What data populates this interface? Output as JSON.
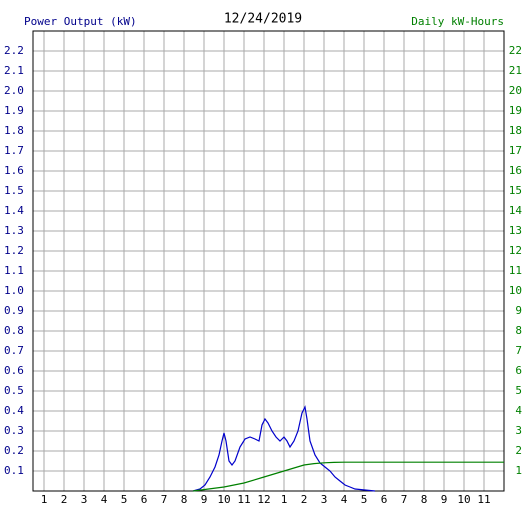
{
  "chart_data": {
    "type": "line",
    "title": "12/24/2019",
    "y_label": "Power Output (kW)",
    "y2_label": "Daily kW-Hours",
    "grid": true,
    "xlim": [
      0.45,
      24
    ],
    "xticks": [
      1,
      2,
      3,
      4,
      5,
      6,
      7,
      8,
      9,
      10,
      11,
      12,
      {
        "value": 13,
        "label": "1"
      },
      {
        "value": 14,
        "label": "2"
      },
      {
        "value": 15,
        "label": "3"
      },
      {
        "value": 16,
        "label": "4"
      },
      {
        "value": 17,
        "label": "5"
      },
      {
        "value": 18,
        "label": "6"
      },
      {
        "value": 19,
        "label": "7"
      },
      {
        "value": 20,
        "label": "8"
      },
      {
        "value": 21,
        "label": "9"
      },
      {
        "value": 22,
        "label": "10"
      },
      {
        "value": 23,
        "label": "11"
      }
    ],
    "ylim": [
      0,
      2.3
    ],
    "yticks": [
      0.1,
      0.2,
      0.3,
      0.4,
      0.5,
      0.6,
      0.7,
      0.8,
      0.9,
      {
        "value": 1.0,
        "label": "1.0"
      },
      1.1,
      1.2,
      1.3,
      1.4,
      1.5,
      1.6,
      1.7,
      1.8,
      1.9,
      {
        "value": 2.0,
        "label": "2.0"
      },
      2.1,
      2.2
    ],
    "y2lim": [
      0,
      23
    ],
    "y2ticks": [
      1,
      2,
      3,
      4,
      5,
      6,
      7,
      8,
      9,
      10,
      11,
      12,
      13,
      14,
      15,
      16,
      17,
      18,
      19,
      20,
      21,
      22
    ],
    "y_color": "#00008b",
    "y2_color": "#008000",
    "series": [
      {
        "color": "#0000cc",
        "x": [
          8.45,
          8.8,
          9.05,
          9.3,
          9.55,
          9.75,
          9.9,
          10,
          10.1,
          10.25,
          10.4,
          10.55,
          10.8,
          11.05,
          11.3,
          11.55,
          11.75,
          11.9,
          12.05,
          12.2,
          12.4,
          12.6,
          12.8,
          13,
          13.15,
          13.3,
          13.5,
          13.7,
          13.9,
          14.05,
          14.15,
          14.3,
          14.55,
          14.8,
          15.05,
          15.3,
          15.55,
          15.8,
          16.05,
          16.3,
          16.55,
          17.05,
          17.55
        ],
        "values": [
          0,
          0.01,
          0.03,
          0.07,
          0.12,
          0.18,
          0.25,
          0.29,
          0.25,
          0.15,
          0.13,
          0.15,
          0.22,
          0.26,
          0.27,
          0.26,
          0.25,
          0.33,
          0.36,
          0.34,
          0.3,
          0.27,
          0.25,
          0.27,
          0.25,
          0.22,
          0.25,
          0.3,
          0.39,
          0.42,
          0.36,
          0.25,
          0.18,
          0.14,
          0.12,
          0.1,
          0.07,
          0.05,
          0.03,
          0.02,
          0.01,
          0.005,
          0
        ]
      },
      {
        "color": "#008000",
        "axis": "y2",
        "x": [
          8.45,
          10,
          11,
          12,
          13,
          13.5,
          14,
          14.5,
          15,
          15.5,
          16,
          24
        ],
        "values": [
          0,
          0.2,
          0.4,
          0.7,
          1.0,
          1.15,
          1.3,
          1.37,
          1.41,
          1.43,
          1.44,
          1.44
        ]
      }
    ]
  }
}
